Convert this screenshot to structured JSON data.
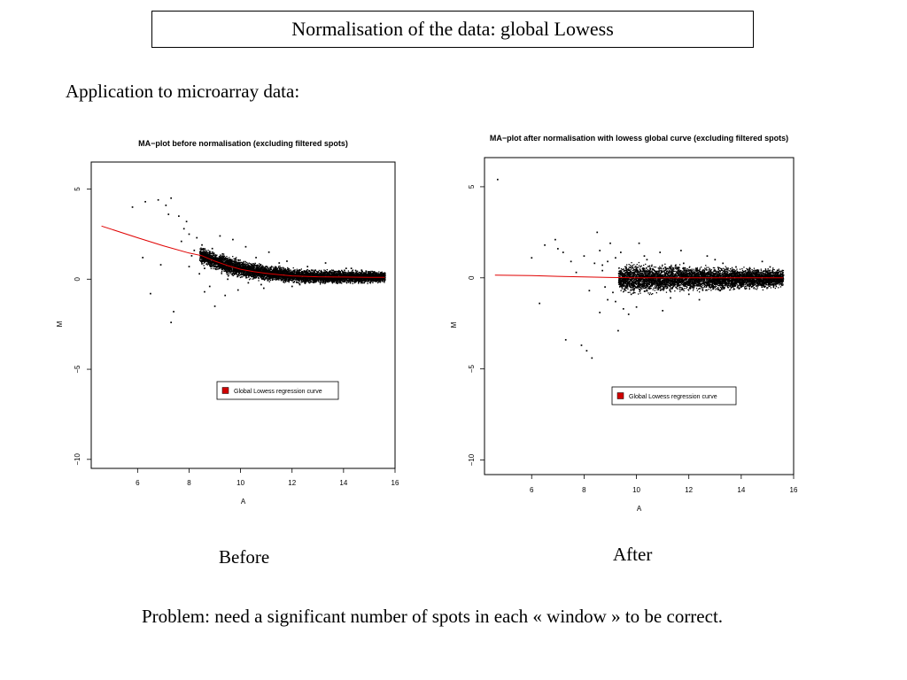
{
  "slide": {
    "title": "Normalisation of the data: global Lowess",
    "subheading": "Application to microarray data:",
    "caption_before": "Before",
    "caption_after": "After",
    "problem": "Problem: need a significant number of spots in each « window » to be correct."
  },
  "colors": {
    "points": "#000000",
    "curve": "#e00000",
    "legend_swatch": "#d00000"
  },
  "chart_data": [
    {
      "type": "scatter",
      "title": "MA−plot before normalisation (excluding filtered spots)",
      "xlabel": "A",
      "ylabel": "M",
      "xlim": [
        4.2,
        16
      ],
      "ylim": [
        -10.5,
        6.5
      ],
      "xticks": [
        6,
        8,
        10,
        12,
        14,
        16
      ],
      "yticks": [
        5,
        0,
        -5,
        -10
      ],
      "ytick_labels": [
        "5",
        "0",
        "−5",
        "−10"
      ],
      "grid": false,
      "legend_position": "lower-right",
      "series": [
        {
          "name": "Global Lowess regression curve",
          "kind": "line",
          "x": [
            4.6,
            6,
            7,
            8,
            8.5,
            9,
            9.5,
            10,
            10.5,
            11,
            11.5,
            12,
            13,
            14,
            15,
            15.6
          ],
          "y": [
            2.95,
            2.3,
            1.85,
            1.45,
            1.3,
            1.0,
            0.75,
            0.55,
            0.42,
            0.32,
            0.25,
            0.18,
            0.13,
            0.12,
            0.1,
            0.1
          ]
        },
        {
          "name": "spots",
          "kind": "scatter",
          "x": [
            5.8,
            6.3,
            6.5,
            6.8,
            7.1,
            7.3,
            7.4,
            7.6,
            7.8,
            7.9,
            8.0,
            8.2,
            8.3,
            8.5,
            8.7,
            8.9,
            9.1,
            9.3,
            9.6,
            9.8,
            10.1,
            10.4,
            10.7,
            11.0,
            11.3,
            11.7,
            12.1,
            12.5,
            13.0,
            13.5,
            14.0,
            14.5,
            15.0,
            15.4,
            6.2,
            6.9,
            7.2,
            7.3,
            7.7,
            8.1,
            8.4,
            8.8,
            9.0,
            9.4,
            9.9,
            10.3,
            10.9,
            11.5,
            12.3,
            12.9,
            13.7,
            14.3,
            14.8,
            15.2,
            15.5,
            8.6,
            9.2,
            9.7,
            10.2,
            10.6,
            11.1,
            11.8,
            12.6,
            13.3,
            14.1,
            14.7,
            15.3,
            8.0,
            8.6,
            9.5,
            10.0,
            10.8,
            11.4,
            12.0,
            13.1,
            14.2
          ],
          "y": [
            4.0,
            4.3,
            -0.8,
            4.4,
            4.1,
            4.5,
            -1.8,
            3.5,
            2.8,
            3.2,
            2.5,
            1.6,
            2.3,
            1.9,
            1.1,
            1.7,
            0.7,
            1.4,
            0.9,
            0.3,
            0.8,
            0.2,
            0.6,
            0.1,
            0.5,
            0.3,
            0.2,
            0.4,
            0.0,
            0.2,
            0.3,
            0.1,
            0.2,
            0.05,
            1.2,
            0.8,
            3.6,
            -2.4,
            2.1,
            1.3,
            0.3,
            -0.4,
            -1.5,
            -0.9,
            -0.6,
            -0.2,
            -0.5,
            0.9,
            -0.3,
            0.5,
            -0.1,
            0.6,
            -0.2,
            0.4,
            0.0,
            0.6,
            2.4,
            2.2,
            1.8,
            1.2,
            1.5,
            1.0,
            0.7,
            0.9,
            0.6,
            0.5,
            0.3,
            0.7,
            -0.7,
            0.0,
            0.4,
            -0.3,
            0.2,
            -0.4,
            -0.2,
            0.1
          ]
        }
      ],
      "dense_band": {
        "x": [
          8.4,
          9.0,
          9.5,
          10.0,
          10.5,
          11.0,
          11.5,
          12.0,
          13.0,
          14.0,
          15.0,
          15.6
        ],
        "upper": [
          1.9,
          1.55,
          1.35,
          1.15,
          0.95,
          0.85,
          0.75,
          0.65,
          0.55,
          0.55,
          0.5,
          0.45
        ],
        "lower": [
          0.9,
          0.5,
          0.2,
          0.05,
          -0.05,
          -0.1,
          -0.15,
          -0.2,
          -0.25,
          -0.25,
          -0.2,
          -0.15
        ]
      }
    },
    {
      "type": "scatter",
      "title": "MA−plot after normalisation with lowess global curve (excluding filtered spots)",
      "xlabel": "A",
      "ylabel": "M",
      "xlim": [
        4.2,
        16
      ],
      "ylim": [
        -10.8,
        6.6
      ],
      "xticks": [
        6,
        8,
        10,
        12,
        14,
        16
      ],
      "yticks": [
        5,
        0,
        -5,
        -10
      ],
      "ytick_labels": [
        "5",
        "0",
        "−5",
        "−10"
      ],
      "grid": false,
      "legend_position": "lower-right",
      "series": [
        {
          "name": "Global Lowess regression curve",
          "kind": "line",
          "x": [
            4.6,
            6,
            7,
            8,
            9,
            10,
            11,
            12,
            13,
            14,
            15,
            15.6
          ],
          "y": [
            0.15,
            0.12,
            0.08,
            0.05,
            0.02,
            0.0,
            0.0,
            0.0,
            0.0,
            0.0,
            0.0,
            0.0
          ]
        },
        {
          "name": "spots",
          "kind": "scatter",
          "x": [
            4.7,
            6.0,
            6.5,
            6.9,
            7.2,
            7.5,
            7.9,
            8.1,
            8.3,
            8.5,
            8.6,
            8.7,
            8.8,
            8.9,
            9.0,
            9.1,
            9.2,
            9.3,
            9.5,
            9.8,
            10.1,
            10.5,
            10.9,
            11.3,
            11.8,
            12.2,
            12.7,
            13.2,
            13.8,
            14.3,
            14.8,
            15.3,
            6.3,
            7.0,
            7.3,
            7.7,
            8.0,
            8.2,
            8.4,
            8.6,
            8.7,
            8.9,
            9.2,
            9.6,
            10.0,
            10.4,
            10.8,
            11.5,
            12.0,
            12.6,
            13.3,
            14.0,
            14.6,
            15.1,
            15.5,
            9.4,
            9.7,
            10.3,
            11.0,
            11.7,
            12.4,
            13.0
          ],
          "y": [
            5.4,
            1.1,
            1.8,
            2.1,
            1.4,
            0.9,
            -3.7,
            -4.0,
            -4.4,
            2.5,
            1.5,
            0.7,
            -0.5,
            -1.2,
            1.9,
            -0.8,
            1.1,
            -2.9,
            -1.7,
            -0.9,
            1.9,
            -0.6,
            1.4,
            -1.1,
            0.8,
            -0.4,
            1.2,
            -0.7,
            0.6,
            -0.3,
            0.9,
            -0.2,
            -1.4,
            1.6,
            -3.4,
            0.3,
            1.2,
            -0.7,
            0.8,
            -1.9,
            0.4,
            0.9,
            -1.3,
            0.5,
            -1.6,
            1.0,
            -0.4,
            0.7,
            -0.9,
            0.3,
            0.8,
            -0.5,
            0.4,
            0.6,
            -0.2,
            1.4,
            -2.0,
            1.2,
            -1.8,
            1.5,
            -1.2,
            1.0
          ]
        }
      ],
      "dense_band": {
        "x": [
          9.3,
          9.6,
          10.0,
          10.5,
          11.0,
          11.5,
          12.0,
          13.0,
          14.0,
          15.0,
          15.6
        ],
        "upper": [
          0.65,
          0.8,
          0.85,
          0.8,
          0.75,
          0.7,
          0.7,
          0.65,
          0.6,
          0.6,
          0.45
        ],
        "lower": [
          -0.65,
          -0.8,
          -0.9,
          -0.85,
          -0.8,
          -0.75,
          -0.7,
          -0.7,
          -0.65,
          -0.6,
          -0.45
        ]
      }
    }
  ]
}
